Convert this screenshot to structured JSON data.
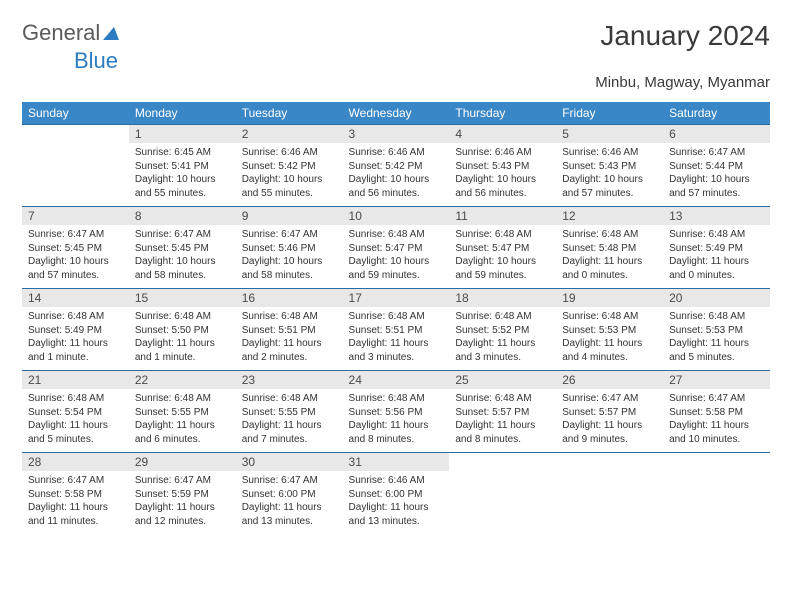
{
  "brand": {
    "part1": "General",
    "part2": "Blue"
  },
  "title": "January 2024",
  "location": "Minbu, Magway, Myanmar",
  "theme": {
    "header_bg": "#3a87c8",
    "header_fg": "#ffffff",
    "daynum_bg": "#e8e8e8",
    "border": "#2b6aa5",
    "text": "#333333"
  },
  "weekdays": [
    "Sunday",
    "Monday",
    "Tuesday",
    "Wednesday",
    "Thursday",
    "Friday",
    "Saturday"
  ],
  "weeks": [
    [
      {
        "n": "",
        "sr": "",
        "ss": "",
        "dl": ""
      },
      {
        "n": "1",
        "sr": "Sunrise: 6:45 AM",
        "ss": "Sunset: 5:41 PM",
        "dl": "Daylight: 10 hours and 55 minutes."
      },
      {
        "n": "2",
        "sr": "Sunrise: 6:46 AM",
        "ss": "Sunset: 5:42 PM",
        "dl": "Daylight: 10 hours and 55 minutes."
      },
      {
        "n": "3",
        "sr": "Sunrise: 6:46 AM",
        "ss": "Sunset: 5:42 PM",
        "dl": "Daylight: 10 hours and 56 minutes."
      },
      {
        "n": "4",
        "sr": "Sunrise: 6:46 AM",
        "ss": "Sunset: 5:43 PM",
        "dl": "Daylight: 10 hours and 56 minutes."
      },
      {
        "n": "5",
        "sr": "Sunrise: 6:46 AM",
        "ss": "Sunset: 5:43 PM",
        "dl": "Daylight: 10 hours and 57 minutes."
      },
      {
        "n": "6",
        "sr": "Sunrise: 6:47 AM",
        "ss": "Sunset: 5:44 PM",
        "dl": "Daylight: 10 hours and 57 minutes."
      }
    ],
    [
      {
        "n": "7",
        "sr": "Sunrise: 6:47 AM",
        "ss": "Sunset: 5:45 PM",
        "dl": "Daylight: 10 hours and 57 minutes."
      },
      {
        "n": "8",
        "sr": "Sunrise: 6:47 AM",
        "ss": "Sunset: 5:45 PM",
        "dl": "Daylight: 10 hours and 58 minutes."
      },
      {
        "n": "9",
        "sr": "Sunrise: 6:47 AM",
        "ss": "Sunset: 5:46 PM",
        "dl": "Daylight: 10 hours and 58 minutes."
      },
      {
        "n": "10",
        "sr": "Sunrise: 6:48 AM",
        "ss": "Sunset: 5:47 PM",
        "dl": "Daylight: 10 hours and 59 minutes."
      },
      {
        "n": "11",
        "sr": "Sunrise: 6:48 AM",
        "ss": "Sunset: 5:47 PM",
        "dl": "Daylight: 10 hours and 59 minutes."
      },
      {
        "n": "12",
        "sr": "Sunrise: 6:48 AM",
        "ss": "Sunset: 5:48 PM",
        "dl": "Daylight: 11 hours and 0 minutes."
      },
      {
        "n": "13",
        "sr": "Sunrise: 6:48 AM",
        "ss": "Sunset: 5:49 PM",
        "dl": "Daylight: 11 hours and 0 minutes."
      }
    ],
    [
      {
        "n": "14",
        "sr": "Sunrise: 6:48 AM",
        "ss": "Sunset: 5:49 PM",
        "dl": "Daylight: 11 hours and 1 minute."
      },
      {
        "n": "15",
        "sr": "Sunrise: 6:48 AM",
        "ss": "Sunset: 5:50 PM",
        "dl": "Daylight: 11 hours and 1 minute."
      },
      {
        "n": "16",
        "sr": "Sunrise: 6:48 AM",
        "ss": "Sunset: 5:51 PM",
        "dl": "Daylight: 11 hours and 2 minutes."
      },
      {
        "n": "17",
        "sr": "Sunrise: 6:48 AM",
        "ss": "Sunset: 5:51 PM",
        "dl": "Daylight: 11 hours and 3 minutes."
      },
      {
        "n": "18",
        "sr": "Sunrise: 6:48 AM",
        "ss": "Sunset: 5:52 PM",
        "dl": "Daylight: 11 hours and 3 minutes."
      },
      {
        "n": "19",
        "sr": "Sunrise: 6:48 AM",
        "ss": "Sunset: 5:53 PM",
        "dl": "Daylight: 11 hours and 4 minutes."
      },
      {
        "n": "20",
        "sr": "Sunrise: 6:48 AM",
        "ss": "Sunset: 5:53 PM",
        "dl": "Daylight: 11 hours and 5 minutes."
      }
    ],
    [
      {
        "n": "21",
        "sr": "Sunrise: 6:48 AM",
        "ss": "Sunset: 5:54 PM",
        "dl": "Daylight: 11 hours and 5 minutes."
      },
      {
        "n": "22",
        "sr": "Sunrise: 6:48 AM",
        "ss": "Sunset: 5:55 PM",
        "dl": "Daylight: 11 hours and 6 minutes."
      },
      {
        "n": "23",
        "sr": "Sunrise: 6:48 AM",
        "ss": "Sunset: 5:55 PM",
        "dl": "Daylight: 11 hours and 7 minutes."
      },
      {
        "n": "24",
        "sr": "Sunrise: 6:48 AM",
        "ss": "Sunset: 5:56 PM",
        "dl": "Daylight: 11 hours and 8 minutes."
      },
      {
        "n": "25",
        "sr": "Sunrise: 6:48 AM",
        "ss": "Sunset: 5:57 PM",
        "dl": "Daylight: 11 hours and 8 minutes."
      },
      {
        "n": "26",
        "sr": "Sunrise: 6:47 AM",
        "ss": "Sunset: 5:57 PM",
        "dl": "Daylight: 11 hours and 9 minutes."
      },
      {
        "n": "27",
        "sr": "Sunrise: 6:47 AM",
        "ss": "Sunset: 5:58 PM",
        "dl": "Daylight: 11 hours and 10 minutes."
      }
    ],
    [
      {
        "n": "28",
        "sr": "Sunrise: 6:47 AM",
        "ss": "Sunset: 5:58 PM",
        "dl": "Daylight: 11 hours and 11 minutes."
      },
      {
        "n": "29",
        "sr": "Sunrise: 6:47 AM",
        "ss": "Sunset: 5:59 PM",
        "dl": "Daylight: 11 hours and 12 minutes."
      },
      {
        "n": "30",
        "sr": "Sunrise: 6:47 AM",
        "ss": "Sunset: 6:00 PM",
        "dl": "Daylight: 11 hours and 13 minutes."
      },
      {
        "n": "31",
        "sr": "Sunrise: 6:46 AM",
        "ss": "Sunset: 6:00 PM",
        "dl": "Daylight: 11 hours and 13 minutes."
      },
      {
        "n": "",
        "sr": "",
        "ss": "",
        "dl": ""
      },
      {
        "n": "",
        "sr": "",
        "ss": "",
        "dl": ""
      },
      {
        "n": "",
        "sr": "",
        "ss": "",
        "dl": ""
      }
    ]
  ]
}
